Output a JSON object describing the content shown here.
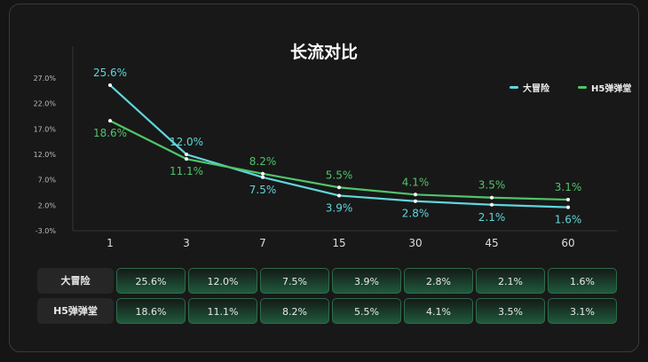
{
  "chart_data": {
    "type": "line",
    "title": "长流对比",
    "categories": [
      "1",
      "3",
      "7",
      "15",
      "30",
      "45",
      "60"
    ],
    "y_ticks": [
      "27.0%",
      "22.0%",
      "17.0%",
      "12.0%",
      "7.0%",
      "2.0%",
      "-3.0%"
    ],
    "ylim": [
      -3,
      27
    ],
    "grid": false,
    "legend_position": "top-right",
    "series": [
      {
        "name": "大冒险",
        "color": "#5fd6dc",
        "values": [
          25.6,
          12.0,
          7.5,
          3.9,
          2.8,
          2.1,
          1.6
        ],
        "labels": [
          "25.6%",
          "12.0%",
          "7.5%",
          "3.9%",
          "2.8%",
          "2.1%",
          "1.6%"
        ]
      },
      {
        "name": "H5弹弹堂",
        "color": "#4fc56a",
        "values": [
          18.6,
          11.1,
          8.2,
          5.5,
          4.1,
          3.5,
          3.1
        ],
        "labels": [
          "18.6%",
          "11.1%",
          "8.2%",
          "5.5%",
          "4.1%",
          "3.5%",
          "3.1%"
        ]
      }
    ]
  }
}
